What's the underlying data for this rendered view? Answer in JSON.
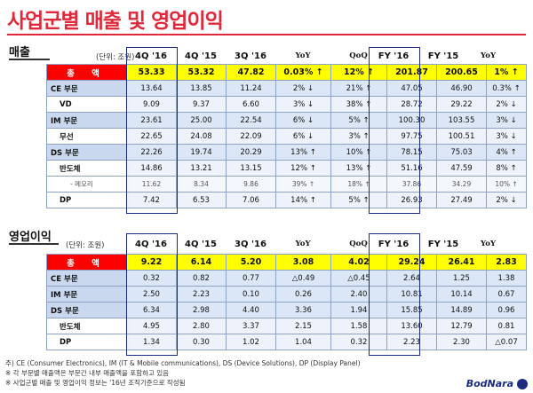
{
  "title": "사업군별 매출 및 영업이익",
  "sales": {
    "section_title": "매출",
    "unit": "(단위: 조원)",
    "headers": [
      "4Q '16",
      "4Q '15",
      "3Q '16",
      "YoY",
      "QoQ",
      "FY '16",
      "FY '15",
      "YoY"
    ],
    "rows": [
      {
        "type": "total",
        "label": "총 액",
        "values": [
          "53.33",
          "53.32",
          "47.82",
          "0.03% ↑",
          "12% ↑",
          "201.87",
          "200.65",
          "1% ↑"
        ]
      },
      {
        "type": "seg",
        "label": "CE 부문",
        "values": [
          "13.64",
          "13.85",
          "11.24",
          "2% ↓",
          "21% ↑",
          "47.05",
          "46.90",
          "0.3% ↑"
        ]
      },
      {
        "type": "sub",
        "label": "VD",
        "values": [
          "9.09",
          "9.37",
          "6.60",
          "3% ↓",
          "38% ↑",
          "28.72",
          "29.22",
          "2% ↓"
        ]
      },
      {
        "type": "seg",
        "label": "IM 부문",
        "values": [
          "23.61",
          "25.00",
          "22.54",
          "6% ↓",
          "5% ↑",
          "100.30",
          "103.55",
          "3% ↓"
        ]
      },
      {
        "type": "sub",
        "label": "무선",
        "values": [
          "22.65",
          "24.08",
          "22.09",
          "6% ↓",
          "3% ↑",
          "97.75",
          "100.51",
          "3% ↓"
        ]
      },
      {
        "type": "seg",
        "label": "DS 부문",
        "values": [
          "22.26",
          "19.74",
          "20.29",
          "13% ↑",
          "10% ↑",
          "78.15",
          "75.03",
          "4% ↑"
        ]
      },
      {
        "type": "sub",
        "label": "반도체",
        "values": [
          "14.86",
          "13.21",
          "13.15",
          "12% ↑",
          "13% ↑",
          "51.16",
          "47.59",
          "8% ↑"
        ]
      },
      {
        "type": "subsub",
        "label": "- 메모리",
        "values": [
          "11.62",
          "8.34",
          "9.86",
          "39% ↑",
          "18% ↑",
          "37.86",
          "34.29",
          "10% ↑"
        ]
      },
      {
        "type": "sub",
        "label": "DP",
        "values": [
          "7.42",
          "6.53",
          "7.06",
          "14% ↑",
          "5% ↑",
          "26.93",
          "27.49",
          "2% ↓"
        ]
      }
    ]
  },
  "op_income": {
    "section_title": "영업이익",
    "unit": "(단위: 조원)",
    "headers": [
      "4Q '16",
      "4Q '15",
      "3Q '16",
      "YoY",
      "QoQ",
      "FY '16",
      "FY '15",
      "YoY"
    ],
    "rows": [
      {
        "type": "total",
        "label": "총 액",
        "values": [
          "9.22",
          "6.14",
          "5.20",
          "3.08",
          "4.02",
          "29.24",
          "26.41",
          "2.83"
        ]
      },
      {
        "type": "seg",
        "label": "CE 부문",
        "values": [
          "0.32",
          "0.82",
          "0.77",
          "△0.49",
          "△0.45",
          "2.64",
          "1.25",
          "1.38"
        ]
      },
      {
        "type": "seg",
        "label": "IM 부문",
        "values": [
          "2.50",
          "2.23",
          "0.10",
          "0.26",
          "2.40",
          "10.81",
          "10.14",
          "0.67"
        ]
      },
      {
        "type": "seg",
        "label": "DS 부문",
        "values": [
          "6.34",
          "2.98",
          "4.40",
          "3.36",
          "1.94",
          "15.85",
          "14.89",
          "0.96"
        ]
      },
      {
        "type": "sub",
        "label": "반도체",
        "values": [
          "4.95",
          "2.80",
          "3.37",
          "2.15",
          "1.58",
          "13.60",
          "12.79",
          "0.81"
        ]
      },
      {
        "type": "sub",
        "label": "DP",
        "values": [
          "1.34",
          "0.30",
          "1.02",
          "1.04",
          "0.32",
          "2.23",
          "2.30",
          "△0.07"
        ]
      }
    ]
  },
  "footnotes": [
    "주) CE (Consumer Electronics), IM (IT & Mobile communications), DS (Device Solutions), DP (Display Panel)",
    "※ 각 부문별 매출액은 부문간 내부 매출액을 포함하고 있음",
    "※ 사업군별 매출 및 영업이익 정보는 '16년 조직기준으로 작성됨"
  ],
  "logo": "BodNara",
  "colors": {
    "title": "#e0283a",
    "total_bg": "#ffff00",
    "total_label_bg": "#ff0000",
    "segment_bg": "#dbe7f6",
    "highlight_border": "#1c2b80"
  }
}
